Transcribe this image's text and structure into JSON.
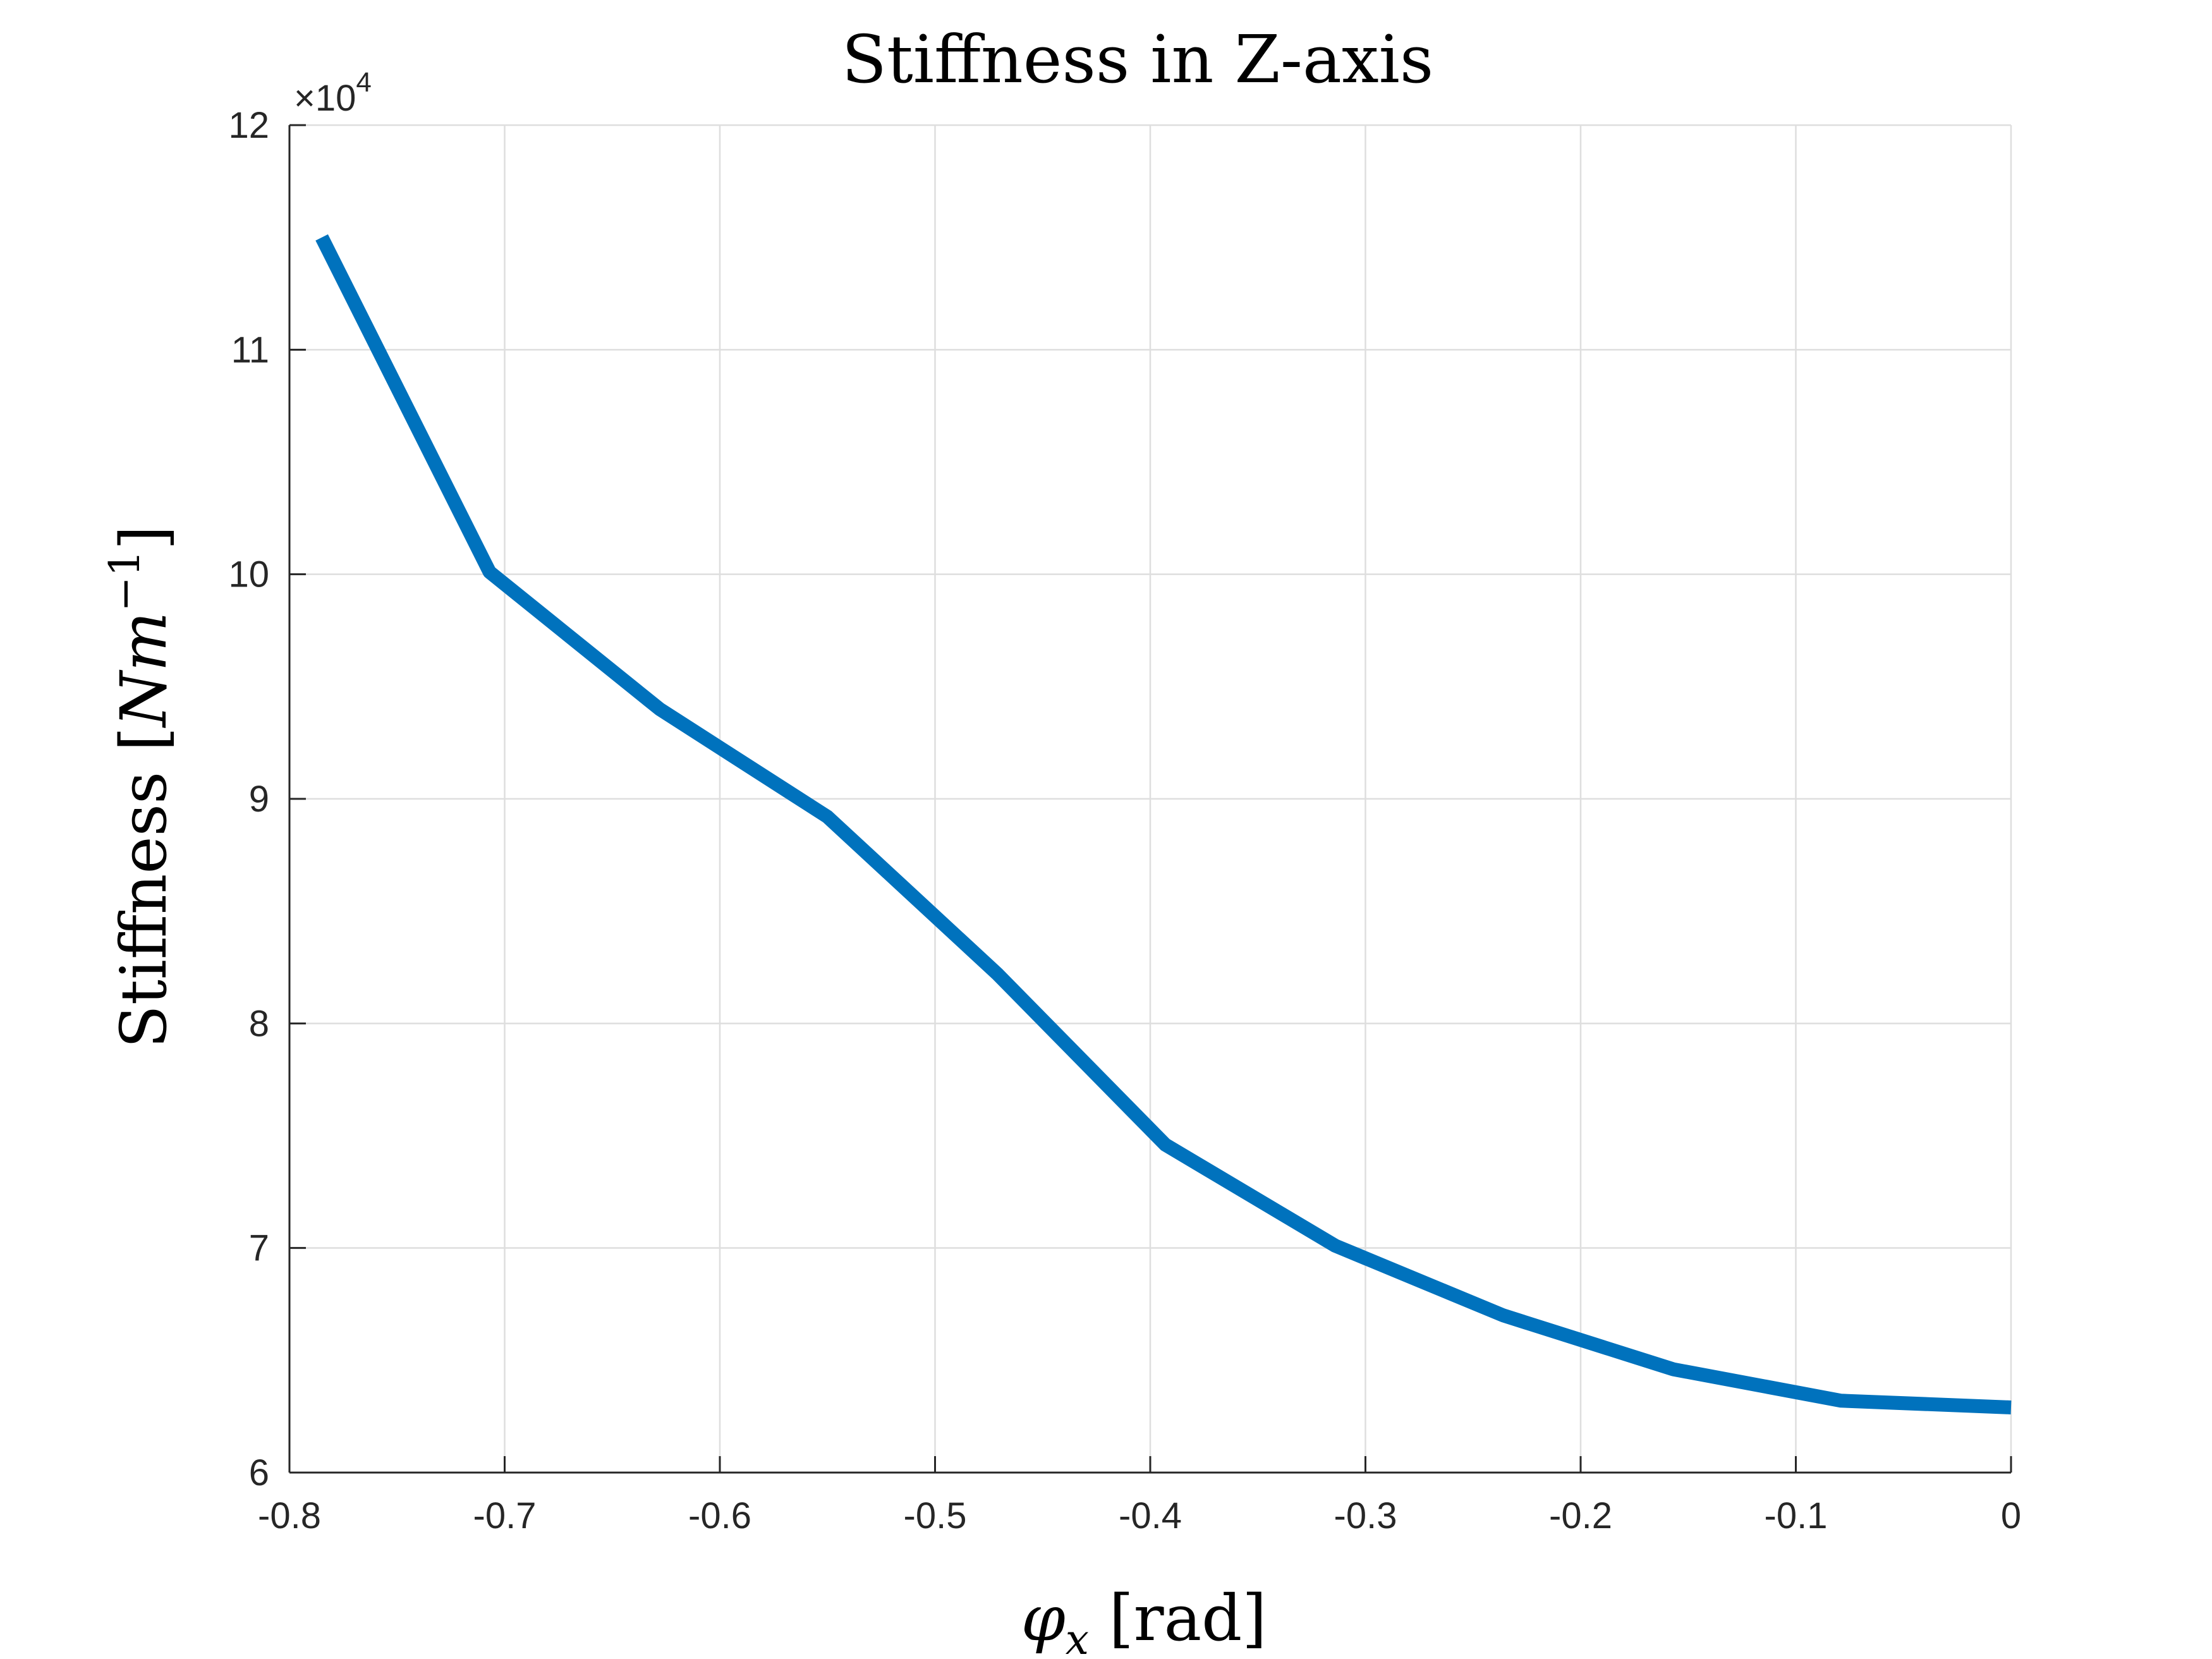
{
  "chart_data": {
    "type": "line",
    "title": "Stiffness in Z-axis",
    "xlabel": "φx [rad]",
    "xlabel_parts": {
      "symbol": "φ",
      "subscript": "x",
      "unit": "[rad]"
    },
    "ylabel": "Stiffness [Nm−1]",
    "ylabel_parts": {
      "text": "Stiffness [",
      "N": "N",
      "m": "m",
      "exponent": "−1",
      "close": "]"
    },
    "y_exponent_label": {
      "times": "×",
      "base": "10",
      "power": "4"
    },
    "xlim": [
      -0.8,
      0
    ],
    "ylim": [
      6,
      12
    ],
    "xticks": [
      -0.8,
      -0.7,
      -0.6,
      -0.5,
      -0.4,
      -0.3,
      -0.2,
      -0.1,
      0
    ],
    "xtick_labels": [
      "-0.8",
      "-0.7",
      "-0.6",
      "-0.5",
      "-0.4",
      "-0.3",
      "-0.2",
      "-0.1",
      "0"
    ],
    "yticks": [
      6,
      7,
      8,
      9,
      10,
      11,
      12
    ],
    "ytick_labels": [
      "6",
      "7",
      "8",
      "9",
      "10",
      "11",
      "12"
    ],
    "grid": true,
    "series": [
      {
        "color": "#0072BD",
        "x": [
          -0.785,
          -0.707,
          -0.628,
          -0.55,
          -0.471,
          -0.393,
          -0.314,
          -0.236,
          -0.157,
          -0.079,
          0
        ],
        "y": [
          11.5,
          10.01,
          9.4,
          8.92,
          8.22,
          7.46,
          7.01,
          6.7,
          6.46,
          6.32,
          6.29
        ]
      }
    ]
  }
}
